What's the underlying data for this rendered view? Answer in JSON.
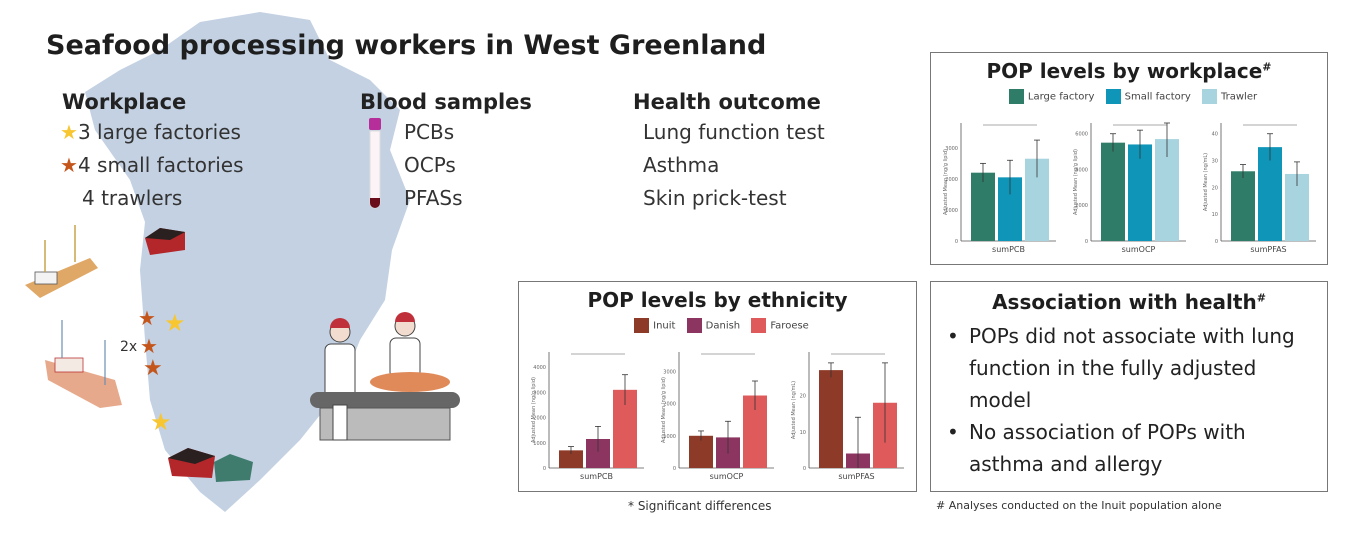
{
  "title": "Seafood processing workers in West Greenland",
  "workplace": {
    "heading": "Workplace",
    "items": [
      {
        "label": "3 large factories",
        "icon": "gold-star-icon",
        "color": "#f7c631"
      },
      {
        "label": "4 small factories",
        "icon": "orange-star-icon",
        "color": "#c4561c"
      },
      {
        "label": "4 trawlers",
        "icon": "",
        "color": ""
      }
    ],
    "map_note": "2x"
  },
  "blood_samples": {
    "heading": "Blood samples",
    "items": [
      "PCBs",
      "OCPs",
      "PFASs"
    ]
  },
  "health_outcome": {
    "heading": "Health outcome",
    "items": [
      "Lung function test",
      "Asthma",
      "Skin prick-test"
    ]
  },
  "association": {
    "heading": "Association with health",
    "mark": "#",
    "bullets": [
      "POPs did not associate with lung function in the fully adjusted model",
      "No association of POPs with asthma and allergy"
    ],
    "footnote": "# Analyses conducted on the Inuit population alone"
  },
  "ethnicity_footnote": "* Significant differences",
  "chart_data": [
    {
      "type": "bar",
      "title": "POP levels by workplace",
      "title_mark": "#",
      "legend": [
        "Large factory",
        "Small factory",
        "Trawler"
      ],
      "colors": [
        "#2f7d68",
        "#0f95b8",
        "#a8d4e0"
      ],
      "subplots": [
        {
          "xlabel": "sumPCB",
          "ylabel": "Adjusted Mean (ng/g lipid)",
          "ylim": [
            0,
            3800
          ],
          "ticks": [
            0,
            1000,
            2000,
            3000
          ],
          "values": [
            2200,
            2050,
            2650
          ],
          "err": [
            300,
            550,
            600
          ]
        },
        {
          "xlabel": "sumOCP",
          "ylabel": "Adjusted Mean (ng/g lipid)",
          "ylim": [
            0,
            6600
          ],
          "ticks": [
            0,
            2000,
            4000,
            6000
          ],
          "values": [
            5500,
            5400,
            5700
          ],
          "err": [
            500,
            800,
            1000
          ]
        },
        {
          "xlabel": "sumPFAS",
          "ylabel": "Adjusted Mean (ng/mL)",
          "ylim": [
            0,
            44
          ],
          "ticks": [
            0,
            10,
            20,
            30,
            40
          ],
          "values": [
            26,
            35,
            25
          ],
          "err": [
            2.5,
            5,
            4.5
          ]
        }
      ]
    },
    {
      "type": "bar",
      "title": "POP levels by ethnicity",
      "legend": [
        "Inuit",
        "Danish",
        "Faroese"
      ],
      "colors": [
        "#8e3a28",
        "#8c3560",
        "#df5b5b"
      ],
      "subplots": [
        {
          "xlabel": "sumPCB",
          "ylabel": "Adjusted Mean (ng/g lipid)",
          "ylim": [
            0,
            4600
          ],
          "ticks": [
            0,
            1000,
            2000,
            3000,
            4000
          ],
          "values": [
            700,
            1150,
            3100
          ],
          "err": [
            150,
            500,
            600
          ]
        },
        {
          "xlabel": "sumOCP",
          "ylabel": "Adjusted Mean (ng/g lipid)",
          "ylim": [
            0,
            3600
          ],
          "ticks": [
            0,
            1000,
            2000,
            3000
          ],
          "values": [
            1000,
            950,
            2250
          ],
          "err": [
            150,
            500,
            450
          ]
        },
        {
          "xlabel": "sumPFAS",
          "ylabel": "Adjusted Mean (ng/mL)",
          "ylim": [
            0,
            32
          ],
          "ticks": [
            0,
            10,
            20
          ],
          "values": [
            27,
            4,
            18
          ],
          "err": [
            2,
            10,
            11
          ]
        }
      ]
    }
  ]
}
